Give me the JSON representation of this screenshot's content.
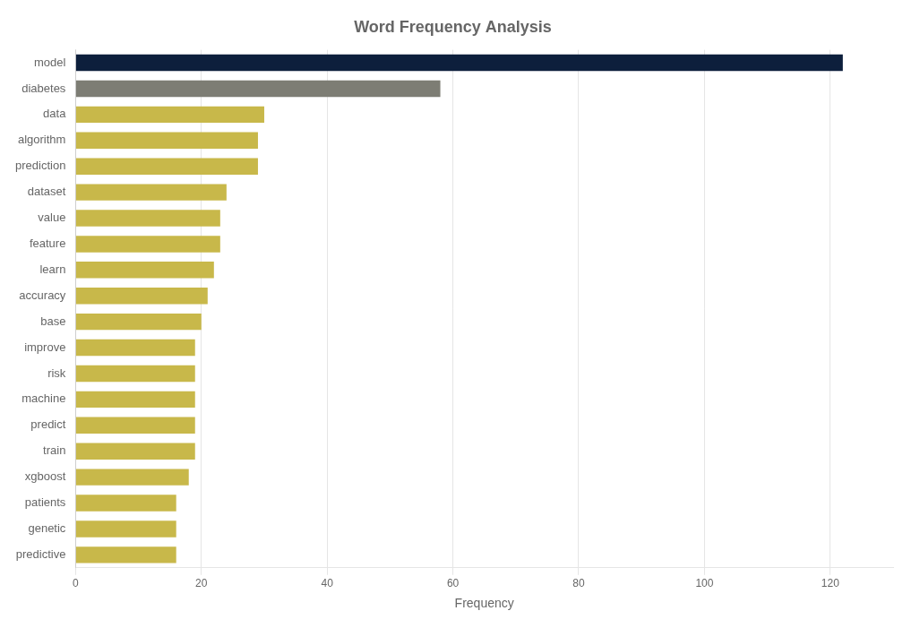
{
  "chart_data": {
    "type": "bar",
    "orientation": "horizontal",
    "title": "Word Frequency Analysis",
    "xlabel": "Frequency",
    "categories": [
      "model",
      "diabetes",
      "data",
      "algorithm",
      "prediction",
      "dataset",
      "value",
      "feature",
      "learn",
      "accuracy",
      "base",
      "improve",
      "risk",
      "machine",
      "predict",
      "train",
      "xgboost",
      "patients",
      "genetic",
      "predictive"
    ],
    "values": [
      122,
      58,
      30,
      29,
      29,
      24,
      23,
      23,
      22,
      21,
      20,
      19,
      19,
      19,
      19,
      19,
      18,
      16,
      16,
      16
    ],
    "colors": [
      "#0d1f3c",
      "#7d7d74",
      "#c8b84a",
      "#c8b84a",
      "#c8b84a",
      "#c8b84a",
      "#c8b84a",
      "#c8b84a",
      "#c8b84a",
      "#c8b84a",
      "#c8b84a",
      "#c8b84a",
      "#c8b84a",
      "#c8b84a",
      "#c8b84a",
      "#c8b84a",
      "#c8b84a",
      "#c8b84a",
      "#c8b84a",
      "#c8b84a"
    ],
    "xlim": [
      0,
      130
    ],
    "xticks": [
      0,
      20,
      40,
      60,
      80,
      100,
      120
    ],
    "grid": true
  }
}
